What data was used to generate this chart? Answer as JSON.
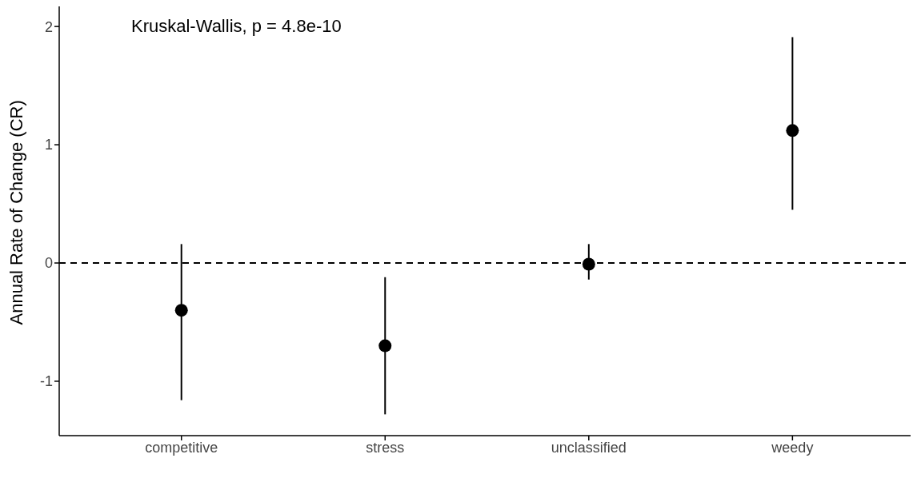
{
  "chart_data": {
    "type": "scatter",
    "ylabel": "Annual Rate of Change (CR)",
    "categories": [
      "competitive",
      "stress",
      "unclassified",
      "weedy"
    ],
    "values": [
      -0.4,
      -0.7,
      -0.01,
      1.12
    ],
    "errors": [
      [
        -1.16,
        0.16
      ],
      [
        -1.28,
        -0.12
      ],
      [
        -0.14,
        0.16
      ],
      [
        0.45,
        1.91
      ]
    ],
    "color": "#000000",
    "marker": "circle",
    "ylim": [
      -1.46,
      2.17
    ],
    "yticks": [
      -1,
      0,
      1,
      2
    ],
    "ref_lines": [
      {
        "axis": "y",
        "value": 0,
        "line_style": "dashed",
        "color": "#000000"
      }
    ],
    "annotations": [
      "Kruskal-Wallis, p = 4.8e-10"
    ]
  }
}
